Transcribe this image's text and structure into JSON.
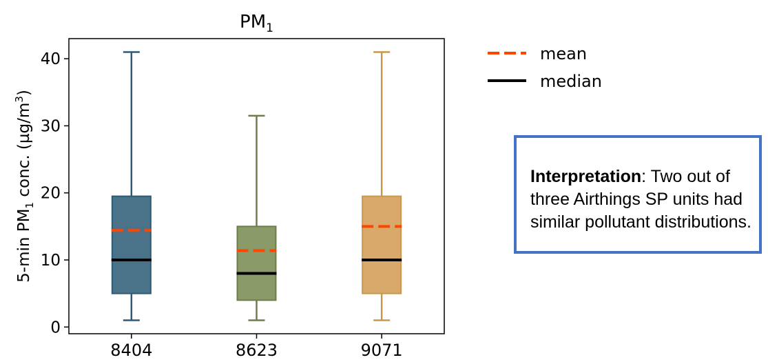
{
  "chart_data": {
    "type": "box",
    "title": "PM",
    "title_subscript": "1",
    "ylabel_parts": [
      "5-min PM",
      "1",
      " conc. (µg/m",
      "3",
      ")"
    ],
    "ylim": [
      -1,
      43
    ],
    "yticks": [
      0,
      10,
      20,
      30,
      40
    ],
    "categories": [
      "8404",
      "8623",
      "9071"
    ],
    "boxes": [
      {
        "category": "8404",
        "whisker_low": 1,
        "q1": 5,
        "median": 10,
        "q3": 19.5,
        "whisker_high": 41,
        "mean": 14.4,
        "color": "#4a7288",
        "edge": "#2d5b75"
      },
      {
        "category": "8623",
        "whisker_low": 1,
        "q1": 4,
        "median": 8,
        "q3": 15,
        "whisker_high": 31.5,
        "mean": 11.4,
        "color": "#8a9a68",
        "edge": "#6d7d4a"
      },
      {
        "category": "9071",
        "whisker_low": 1,
        "q1": 5,
        "median": 10,
        "q3": 19.5,
        "whisker_high": 41,
        "mean": 15,
        "color": "#d8a96b",
        "edge": "#c8974f"
      }
    ],
    "legend": [
      {
        "label": "mean",
        "style": "dashed",
        "color": "#ff4500"
      },
      {
        "label": "median",
        "style": "solid",
        "color": "#000000"
      }
    ],
    "legend_position": "outside-top-right"
  },
  "note": {
    "bold": "Interpretation",
    "text": ": Two out of three Airthings SP units had similar pollutant distributions."
  }
}
